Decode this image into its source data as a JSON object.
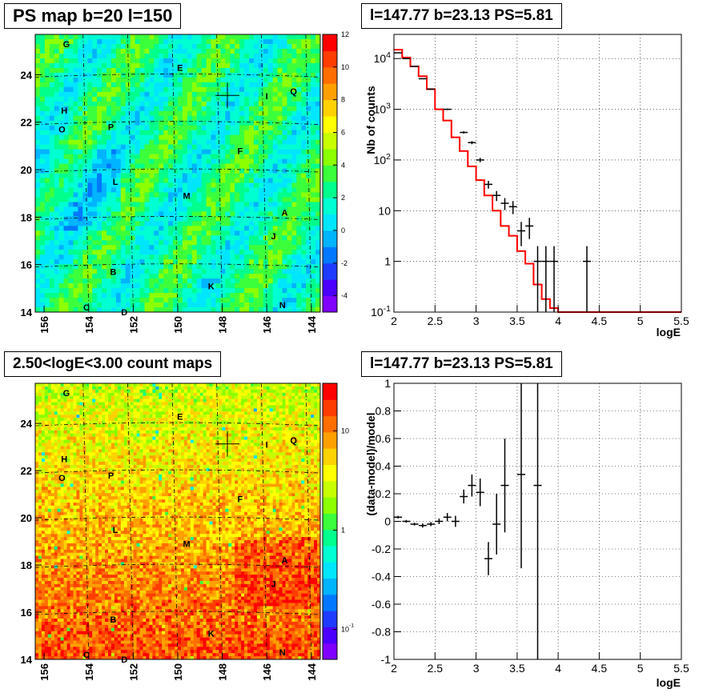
{
  "panels": {
    "ps_map": {
      "title": "PS map b=20 l=150",
      "colorbar_ticks": [
        "12",
        "10",
        "8",
        "6",
        "4",
        "2",
        "0",
        "-2",
        "-4"
      ],
      "x_ticks": [
        "156",
        "154",
        "152",
        "150",
        "148",
        "146",
        "144"
      ],
      "y_ticks": [
        "24",
        "22",
        "20",
        "18",
        "16",
        "14"
      ]
    },
    "spectrum": {
      "title": "l=147.77 b=23.13 PS=5.81",
      "ylabel": "Nb of counts",
      "xlabel": "logE",
      "x_ticks": [
        "2",
        "2.5",
        "3",
        "3.5",
        "4",
        "4.5",
        "5",
        "5.5"
      ],
      "y_ticks": [
        "10^4",
        "10^3",
        "10^2",
        "10",
        "1",
        "10^-1"
      ]
    },
    "count_map": {
      "title": "2.50<logE<3.00 count maps",
      "colorbar_ticks": [
        "10",
        "1",
        "10^-1"
      ],
      "x_ticks": [
        "156",
        "154",
        "152",
        "150",
        "148",
        "146",
        "144"
      ],
      "y_ticks": [
        "24",
        "22",
        "20",
        "18",
        "16",
        "14"
      ]
    },
    "residual": {
      "title": "l=147.77 b=23.13 PS=5.81",
      "ylabel": "(data-model)/model",
      "xlabel": "logE",
      "x_ticks": [
        "2",
        "2.5",
        "3",
        "3.5",
        "4",
        "4.5",
        "5",
        "5.5"
      ],
      "y_ticks": [
        "1",
        "0.8",
        "0.6",
        "0.4",
        "0.2",
        "0",
        "-0.2",
        "-0.4",
        "-0.6",
        "-0.8",
        "-1"
      ]
    }
  },
  "source_labels": [
    "G",
    "E",
    "I",
    "Q",
    "H",
    "O",
    "P",
    "F",
    "L",
    "M",
    "A",
    "J",
    "B",
    "K",
    "C",
    "D",
    "N"
  ],
  "colors": {
    "axis": "#000000",
    "model_line": "#ff0000",
    "grid": "#000000"
  },
  "chart_data": [
    {
      "type": "heatmap",
      "title": "PS map b=20 l=150",
      "xlabel": "",
      "ylabel": "",
      "xlim": [
        156.4,
        143.6
      ],
      "ylim": [
        14,
        25.7
      ],
      "z_range": [
        -5,
        12
      ],
      "background_value": 1,
      "point_source_marker": {
        "l": 147.77,
        "b": 23.13
      },
      "labeled_sources": [
        {
          "name": "G",
          "l": 155.0,
          "b": 25.3
        },
        {
          "name": "E",
          "l": 149.9,
          "b": 24.3
        },
        {
          "name": "I",
          "l": 146.0,
          "b": 23.1
        },
        {
          "name": "Q",
          "l": 144.8,
          "b": 23.3
        },
        {
          "name": "H",
          "l": 155.1,
          "b": 22.5
        },
        {
          "name": "O",
          "l": 155.2,
          "b": 21.7
        },
        {
          "name": "P",
          "l": 153.0,
          "b": 21.8
        },
        {
          "name": "F",
          "l": 147.2,
          "b": 20.8
        },
        {
          "name": "L",
          "l": 152.8,
          "b": 19.5
        },
        {
          "name": "M",
          "l": 149.6,
          "b": 18.9
        },
        {
          "name": "A",
          "l": 145.2,
          "b": 18.2
        },
        {
          "name": "J",
          "l": 145.7,
          "b": 17.2
        },
        {
          "name": "B",
          "l": 152.9,
          "b": 15.7
        },
        {
          "name": "K",
          "l": 148.5,
          "b": 15.1
        },
        {
          "name": "C",
          "l": 154.1,
          "b": 14.2
        },
        {
          "name": "D",
          "l": 152.4,
          "b": 14.0
        },
        {
          "name": "N",
          "l": 145.3,
          "b": 14.3
        }
      ]
    },
    {
      "type": "line",
      "title": "l=147.77 b=23.13 PS=5.81",
      "xlabel": "logE",
      "ylabel": "Nb of counts",
      "xlim": [
        2,
        5.5
      ],
      "ylim": [
        0.1,
        30000
      ],
      "yscale": "log",
      "grid": true,
      "series": [
        {
          "kind": "model_histogram",
          "color": "#ff0000",
          "x": [
            2.0,
            2.1,
            2.2,
            2.3,
            2.4,
            2.5,
            2.6,
            2.7,
            2.8,
            2.9,
            3.0,
            3.1,
            3.2,
            3.3,
            3.4,
            3.5,
            3.6,
            3.7,
            3.8,
            3.9,
            4.0,
            4.1,
            4.2,
            4.3,
            4.4,
            4.5,
            4.6,
            4.7,
            4.8,
            4.9,
            5.0,
            5.1,
            5.2,
            5.3,
            5.4
          ],
          "values": [
            15000,
            10500,
            7000,
            4500,
            2500,
            1000,
            600,
            280,
            150,
            75,
            40,
            20,
            10,
            5,
            3.2,
            1.6,
            0.9,
            0.35,
            0.18,
            0.12,
            0.1,
            0.1,
            0.1,
            0.1,
            0.1,
            0.1,
            0.1,
            0.1,
            0.1,
            0.1,
            0.1,
            0.1,
            0.1,
            0.1,
            0.1
          ]
        },
        {
          "kind": "data_points",
          "color": "#000000",
          "points": [
            {
              "x": 2.05,
              "y": 13000
            },
            {
              "x": 2.15,
              "y": 10000
            },
            {
              "x": 2.25,
              "y": 7000
            },
            {
              "x": 2.35,
              "y": 4000
            },
            {
              "x": 2.45,
              "y": 2500
            },
            {
              "x": 2.65,
              "y": 1000
            },
            {
              "x": 2.85,
              "y": 350
            },
            {
              "x": 2.95,
              "y": 220
            },
            {
              "x": 3.05,
              "y": 100
            },
            {
              "x": 3.15,
              "y": 33
            },
            {
              "x": 3.25,
              "y": 20
            },
            {
              "x": 3.35,
              "y": 14
            },
            {
              "x": 3.45,
              "y": 12
            },
            {
              "x": 3.55,
              "y": 4
            },
            {
              "x": 3.65,
              "y": 5
            },
            {
              "x": 3.75,
              "y": 1
            },
            {
              "x": 3.85,
              "y": 1
            },
            {
              "x": 3.95,
              "y": 1
            },
            {
              "x": 4.35,
              "y": 1
            }
          ]
        }
      ]
    },
    {
      "type": "heatmap",
      "title": "2.50<logE<3.00 count maps",
      "xlabel": "",
      "ylabel": "",
      "xlim": [
        156.4,
        143.6
      ],
      "ylim": [
        14,
        25.7
      ],
      "z_scale": "log",
      "z_range": [
        0.05,
        30
      ],
      "point_source_marker": {
        "l": 147.77,
        "b": 23.13
      }
    },
    {
      "type": "scatter",
      "title": "l=147.77 b=23.13 PS=5.81",
      "xlabel": "logE",
      "ylabel": "(data-model)/model",
      "xlim": [
        2,
        5.5
      ],
      "ylim": [
        -1,
        1
      ],
      "grid": true,
      "points": [
        {
          "x": 2.05,
          "y": 0.03,
          "err": 0.01
        },
        {
          "x": 2.15,
          "y": 0.0,
          "err": 0.01
        },
        {
          "x": 2.25,
          "y": -0.02,
          "err": 0.01
        },
        {
          "x": 2.35,
          "y": -0.03,
          "err": 0.015
        },
        {
          "x": 2.45,
          "y": -0.02,
          "err": 0.015
        },
        {
          "x": 2.55,
          "y": 0.0,
          "err": 0.02
        },
        {
          "x": 2.65,
          "y": 0.03,
          "err": 0.03
        },
        {
          "x": 2.75,
          "y": 0.0,
          "err": 0.04
        },
        {
          "x": 2.85,
          "y": 0.18,
          "err": 0.05
        },
        {
          "x": 2.95,
          "y": 0.26,
          "err": 0.08
        },
        {
          "x": 3.05,
          "y": 0.21,
          "err": 0.1
        },
        {
          "x": 3.15,
          "y": -0.27,
          "err": 0.12
        },
        {
          "x": 3.25,
          "y": -0.02,
          "err": 0.22
        },
        {
          "x": 3.35,
          "y": 0.26,
          "err": 0.34
        },
        {
          "x": 3.55,
          "y": 0.34,
          "err": 0.68
        },
        {
          "x": 3.75,
          "y": 0.26,
          "err": 1.3
        }
      ]
    }
  ]
}
